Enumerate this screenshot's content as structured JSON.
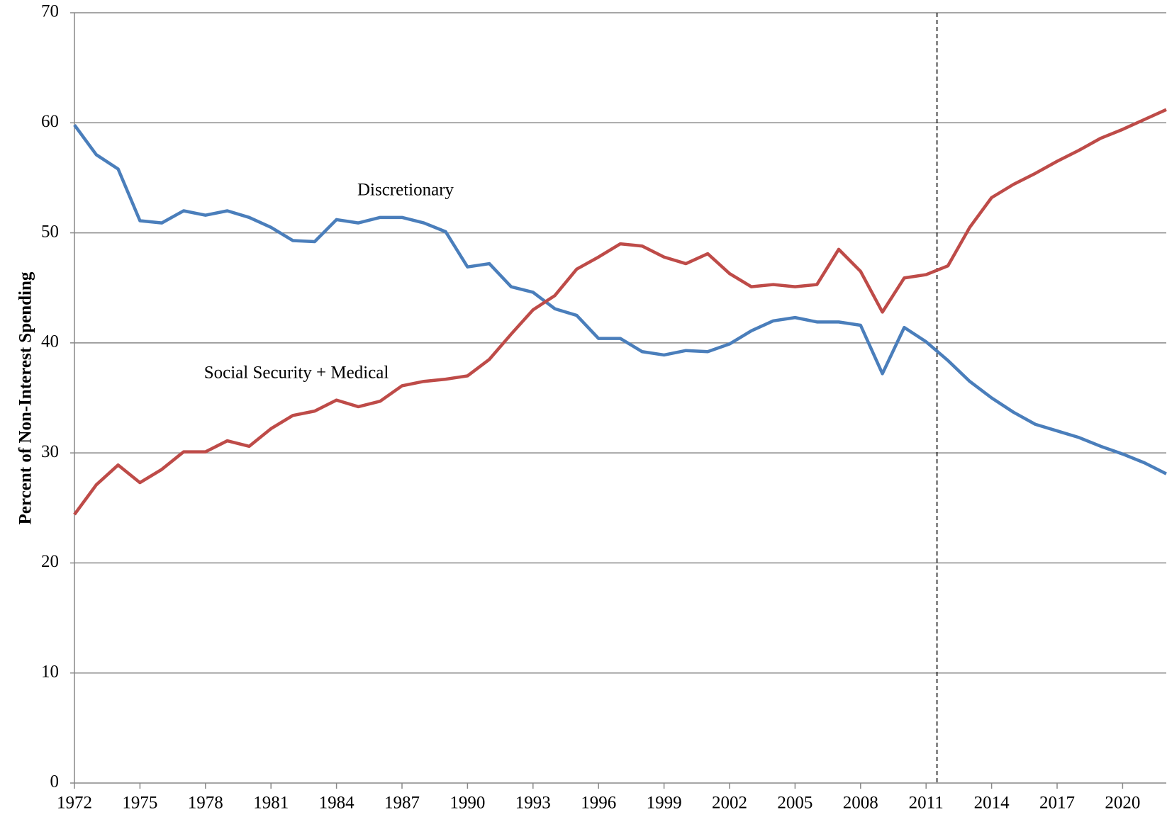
{
  "chart_data": {
    "type": "line",
    "y_label": "Percent of Non-Interest Spending",
    "x": [
      1972,
      1973,
      1974,
      1975,
      1976,
      1977,
      1978,
      1979,
      1980,
      1981,
      1982,
      1983,
      1984,
      1985,
      1986,
      1987,
      1988,
      1989,
      1990,
      1991,
      1992,
      1993,
      1994,
      1995,
      1996,
      1997,
      1998,
      1999,
      2000,
      2001,
      2002,
      2003,
      2004,
      2005,
      2006,
      2007,
      2008,
      2009,
      2010,
      2011,
      2012,
      2013,
      2014,
      2015,
      2016,
      2017,
      2018,
      2019,
      2020,
      2021,
      2022
    ],
    "series": [
      {
        "name": "Discretionary",
        "color": "#4a7ebb",
        "values": [
          59.8,
          57.1,
          55.8,
          51.1,
          50.9,
          52.0,
          51.6,
          52.0,
          51.4,
          50.5,
          49.3,
          49.2,
          51.2,
          50.9,
          51.4,
          51.4,
          50.9,
          50.1,
          46.9,
          47.2,
          45.1,
          44.6,
          43.1,
          42.5,
          40.4,
          40.4,
          39.2,
          38.9,
          39.3,
          39.2,
          39.9,
          41.1,
          42.0,
          42.3,
          41.9,
          41.9,
          41.6,
          37.2,
          41.4,
          40.1,
          38.4,
          36.5,
          35.0,
          33.7,
          32.6,
          32.0,
          31.4,
          30.6,
          29.9,
          29.1,
          28.1
        ]
      },
      {
        "name": "Social Security + Medical",
        "color": "#be4b48",
        "values": [
          24.4,
          27.1,
          28.9,
          27.3,
          28.5,
          30.1,
          30.1,
          31.1,
          30.6,
          32.2,
          33.4,
          33.8,
          34.8,
          34.2,
          34.7,
          36.1,
          36.5,
          36.7,
          37.0,
          38.5,
          40.8,
          43.0,
          44.3,
          46.7,
          47.8,
          49.0,
          48.8,
          47.8,
          47.2,
          48.1,
          46.3,
          45.1,
          45.3,
          45.1,
          45.3,
          48.5,
          46.5,
          42.8,
          45.9,
          46.2,
          47.0,
          50.5,
          53.2,
          54.4,
          55.4,
          56.5,
          57.5,
          58.6,
          59.4,
          60.3,
          61.2
        ]
      }
    ],
    "xlim": [
      1972,
      2022
    ],
    "xticks": [
      1972,
      1975,
      1978,
      1981,
      1984,
      1987,
      1990,
      1993,
      1996,
      1999,
      2002,
      2005,
      2008,
      2011,
      2014,
      2017,
      2020
    ],
    "ylim": [
      0,
      70
    ],
    "yticks": [
      0,
      10,
      20,
      30,
      40,
      50,
      60,
      70
    ],
    "grid": true,
    "vline_x": 2011.5
  }
}
